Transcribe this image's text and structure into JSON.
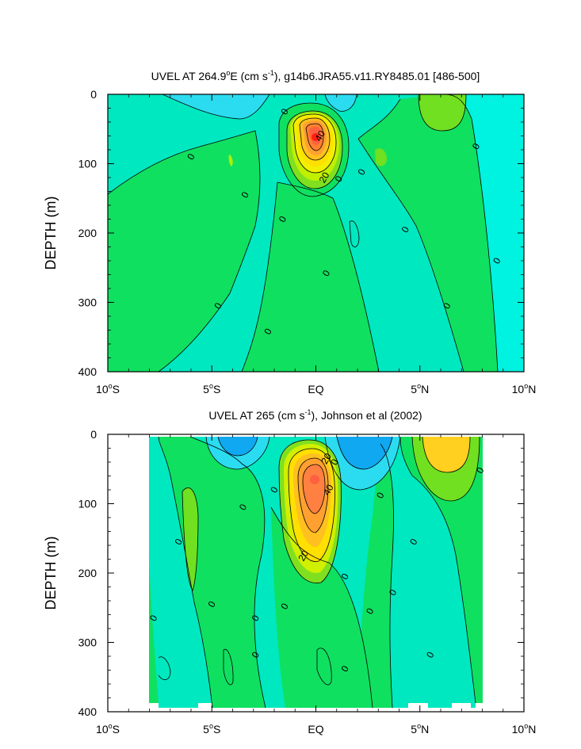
{
  "chart_data": [
    {
      "type": "contour",
      "title": "UVEL AT 264.9°E (cm s⁻¹), g14b6.JRA55.v11.RY8485.01 [486-500]",
      "title_parts": {
        "pre": "UVEL AT 264.9",
        "deg": "o",
        "mid": "E (cm s",
        "exp": "-1",
        "post": "), g14b6.JRA55.v11.RY8485.01 [486-500]"
      },
      "ylabel": "DEPTH (m)",
      "xlim": [
        -10,
        10
      ],
      "ylim": [
        0,
        400
      ],
      "x_ticks": [
        {
          "value": -10,
          "num": "10",
          "deg": "o",
          "hem": "S"
        },
        {
          "value": -5,
          "num": "5",
          "deg": "o",
          "hem": "S"
        },
        {
          "value": 0,
          "num": "EQ",
          "deg": "",
          "hem": ""
        },
        {
          "value": 5,
          "num": "5",
          "deg": "o",
          "hem": "N"
        },
        {
          "value": 10,
          "num": "10",
          "deg": "o",
          "hem": "N"
        }
      ],
      "y_ticks": [
        {
          "value": 0,
          "label": "0"
        },
        {
          "value": 100,
          "label": "100"
        },
        {
          "value": 200,
          "label": "200"
        },
        {
          "value": 300,
          "label": "300"
        },
        {
          "value": 400,
          "label": "400"
        }
      ],
      "contour_labels": [
        {
          "x": 0.2,
          "y": 60,
          "label": "40"
        },
        {
          "x": 0.4,
          "y": 120,
          "label": "20"
        },
        {
          "x": -6.0,
          "y": 90,
          "label": "0"
        },
        {
          "x": -3.4,
          "y": 145,
          "label": "0"
        },
        {
          "x": -1.5,
          "y": 25,
          "label": "0"
        },
        {
          "x": -1.6,
          "y": 180,
          "label": "0"
        },
        {
          "x": 1.1,
          "y": 122,
          "label": "0"
        },
        {
          "x": 2.2,
          "y": 112,
          "label": "0"
        },
        {
          "x": 4.3,
          "y": 195,
          "label": "0"
        },
        {
          "x": 7.7,
          "y": 75,
          "label": "0"
        },
        {
          "x": 8.7,
          "y": 240,
          "label": "0"
        },
        {
          "x": 0.5,
          "y": 258,
          "label": "0"
        },
        {
          "x": -4.7,
          "y": 305,
          "label": "0"
        },
        {
          "x": -2.3,
          "y": 342,
          "label": "0"
        },
        {
          "x": 6.3,
          "y": 305,
          "label": "0"
        }
      ]
    },
    {
      "type": "contour",
      "title": "UVEL AT 265 (cm s⁻¹), Johnson et al (2002)",
      "title_parts": {
        "pre": "UVEL AT 265 (cm s",
        "deg": "",
        "mid": "",
        "exp": "-1",
        "post": "), Johnson et al (2002)"
      },
      "ylabel": "DEPTH (m)",
      "xlim": [
        -10,
        10
      ],
      "ylim": [
        0,
        400
      ],
      "x_ticks": [
        {
          "value": -10,
          "num": "10",
          "deg": "o",
          "hem": "S"
        },
        {
          "value": -5,
          "num": "5",
          "deg": "o",
          "hem": "S"
        },
        {
          "value": 0,
          "num": "EQ",
          "deg": "",
          "hem": ""
        },
        {
          "value": 5,
          "num": "5",
          "deg": "o",
          "hem": "N"
        },
        {
          "value": 10,
          "num": "10",
          "deg": "o",
          "hem": "N"
        }
      ],
      "y_ticks": [
        {
          "value": 0,
          "label": "0"
        },
        {
          "value": 100,
          "label": "100"
        },
        {
          "value": 200,
          "label": "200"
        },
        {
          "value": 300,
          "label": "300"
        },
        {
          "value": 400,
          "label": "400"
        }
      ],
      "contour_labels": [
        {
          "x": 0.5,
          "y": 35,
          "label": "20"
        },
        {
          "x": 0.6,
          "y": 80,
          "label": "40"
        },
        {
          "x": -0.6,
          "y": 175,
          "label": "20"
        },
        {
          "x": 0.9,
          "y": 40,
          "label": "0"
        },
        {
          "x": -3.5,
          "y": 105,
          "label": "0"
        },
        {
          "x": -6.6,
          "y": 155,
          "label": "0"
        },
        {
          "x": -2.0,
          "y": 80,
          "label": "0"
        },
        {
          "x": -5.0,
          "y": 245,
          "label": "0"
        },
        {
          "x": -7.8,
          "y": 265,
          "label": "0"
        },
        {
          "x": -2.9,
          "y": 265,
          "label": "0"
        },
        {
          "x": -1.5,
          "y": 248,
          "label": "0"
        },
        {
          "x": -2.9,
          "y": 318,
          "label": "0"
        },
        {
          "x": 1.4,
          "y": 205,
          "label": "0"
        },
        {
          "x": 3.1,
          "y": 88,
          "label": "0"
        },
        {
          "x": 4.7,
          "y": 155,
          "label": "0"
        },
        {
          "x": 3.7,
          "y": 228,
          "label": "0"
        },
        {
          "x": 2.6,
          "y": 255,
          "label": "0"
        },
        {
          "x": 5.5,
          "y": 318,
          "label": "0"
        },
        {
          "x": 1.4,
          "y": 338,
          "label": "0"
        },
        {
          "x": 7.9,
          "y": 52,
          "label": "0"
        }
      ]
    }
  ]
}
